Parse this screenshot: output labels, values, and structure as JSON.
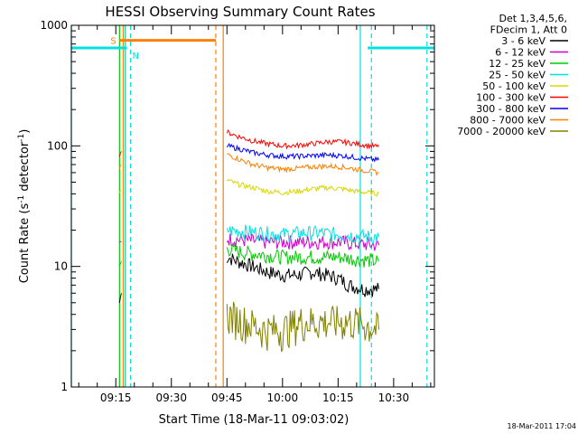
{
  "chart_data": {
    "type": "line",
    "title": "HESSI Observing Summary Count Rates",
    "xlabel": "Start Time (18-Mar-11 09:03:02)",
    "ylabel_pre": "Count Rate (s",
    "ylabel_sup1": "-1",
    "ylabel_mid": " detector",
    "ylabel_sup2": "-1",
    "ylabel_post": ")",
    "y_scale": "log",
    "ylim": [
      1,
      1000
    ],
    "xlim": [
      "09:03",
      "10:41"
    ],
    "x_ticks": [
      {
        "value": "09:15",
        "label": "09:15"
      },
      {
        "value": "09:30",
        "label": "09:30"
      },
      {
        "value": "09:45",
        "label": "09:45"
      },
      {
        "value": "10:00",
        "label": "10:00"
      },
      {
        "value": "10:15",
        "label": "10:15"
      },
      {
        "value": "10:30",
        "label": "10:30"
      }
    ],
    "y_ticks": [
      {
        "value": 1,
        "label": "1"
      },
      {
        "value": 10,
        "label": "10"
      },
      {
        "value": 100,
        "label": "100"
      },
      {
        "value": 1000,
        "label": "1000"
      }
    ],
    "grid": false,
    "legend": {
      "position": "right",
      "header": [
        "Det 1,3,4,5,6,",
        "FDecim 1, Att 0"
      ]
    },
    "series": [
      {
        "name": "3 - 6 keV",
        "color": "#000000",
        "segments": [
          {
            "x": [
              "09:16",
              "09:16:30"
            ],
            "y": [
              5,
              6
            ]
          },
          {
            "x": [
              "09:45",
              "09:48",
              "09:52",
              "09:56",
              "10:00",
              "10:04",
              "10:08",
              "10:12",
              "10:15",
              "10:18",
              "10:22",
              "10:26"
            ],
            "y": [
              12,
              11,
              10,
              9,
              8.5,
              8.5,
              9,
              8.5,
              8,
              7,
              6.5,
              6.5
            ]
          }
        ]
      },
      {
        "name": "6 - 12 keV",
        "color": "#cc00cc",
        "segments": [
          {
            "x": [
              "09:16",
              "09:16:30"
            ],
            "y": [
              15,
              16
            ]
          },
          {
            "x": [
              "09:45",
              "09:50",
              "09:55",
              "10:00",
              "10:05",
              "10:10",
              "10:15",
              "10:20",
              "10:26"
            ],
            "y": [
              17,
              16.5,
              16,
              16,
              16,
              16,
              16,
              15.5,
              15
            ]
          }
        ]
      },
      {
        "name": "12 - 25 keV",
        "color": "#00cc00",
        "segments": [
          {
            "x": [
              "09:16",
              "09:16:30"
            ],
            "y": [
              10,
              11
            ]
          },
          {
            "x": [
              "09:45",
              "09:50",
              "09:55",
              "10:00",
              "10:05",
              "10:10",
              "10:15",
              "10:20",
              "10:26"
            ],
            "y": [
              14,
              13,
              12.5,
              12,
              12,
              12,
              12,
              11.5,
              11
            ]
          }
        ]
      },
      {
        "name": "25 - 50 keV",
        "color": "#00e0e0",
        "segments": [
          {
            "x": [
              "09:45",
              "09:50",
              "09:55",
              "10:00",
              "10:05",
              "10:10",
              "10:15",
              "10:20",
              "10:26"
            ],
            "y": [
              20,
              19.5,
              19,
              18.5,
              19,
              19,
              18.5,
              18,
              17.5
            ]
          }
        ]
      },
      {
        "name": "50 - 100 keV",
        "color": "#d8d800",
        "segments": [
          {
            "x": [
              "09:16",
              "09:16:30"
            ],
            "y": [
              40,
              42
            ]
          },
          {
            "x": [
              "09:45",
              "09:48",
              "09:52",
              "09:56",
              "10:00",
              "10:04",
              "10:08",
              "10:12",
              "10:16",
              "10:20",
              "10:26"
            ],
            "y": [
              52,
              48,
              45,
              42,
              41,
              42,
              44,
              45,
              44,
              42,
              40
            ]
          }
        ]
      },
      {
        "name": "100 - 300 keV",
        "color": "#ff0000",
        "segments": [
          {
            "x": [
              "09:16",
              "09:16:30"
            ],
            "y": [
              85,
              90
            ]
          },
          {
            "x": [
              "09:45",
              "09:48",
              "09:52",
              "09:56",
              "10:00",
              "10:04",
              "10:08",
              "10:12",
              "10:16",
              "10:20",
              "10:26"
            ],
            "y": [
              130,
              120,
              110,
              104,
              100,
              101,
              104,
              108,
              108,
              104,
              98
            ]
          }
        ]
      },
      {
        "name": "300 - 800 keV",
        "color": "#0000ff",
        "segments": [
          {
            "x": [
              "09:45",
              "09:48",
              "09:52",
              "09:56",
              "10:00",
              "10:04",
              "10:08",
              "10:12",
              "10:16",
              "10:20",
              "10:26"
            ],
            "y": [
              100,
              95,
              88,
              84,
              82,
              82,
              83,
              84,
              83,
              80,
              76
            ]
          }
        ]
      },
      {
        "name": "800 - 7000 keV",
        "color": "#ff8000",
        "segments": [
          {
            "x": [
              "09:16",
              "09:16:30"
            ],
            "y": [
              65,
              70
            ]
          },
          {
            "x": [
              "09:45",
              "09:48",
              "09:52",
              "09:56",
              "10:00",
              "10:04",
              "10:08",
              "10:12",
              "10:16",
              "10:20",
              "10:26"
            ],
            "y": [
              85,
              78,
              70,
              66,
              64,
              65,
              67,
              68,
              67,
              64,
              60
            ]
          }
        ]
      },
      {
        "name": "7000 - 20000 keV",
        "color": "#808000",
        "segments": [
          {
            "x": [
              "09:45",
              "09:50",
              "09:55",
              "10:00",
              "10:05",
              "10:10",
              "10:15",
              "10:20",
              "10:26"
            ],
            "y": [
              4,
              3.5,
              3,
              3,
              3.5,
              3.5,
              3.5,
              3.5,
              3
            ]
          }
        ]
      }
    ],
    "annotations": {
      "saa_flag": {
        "label": "S",
        "color": "#ff8000",
        "x": [
          "09:16",
          "09:42"
        ],
        "y": 750
      },
      "night_flags": [
        {
          "label": "N",
          "color": "#00e0e0",
          "x": [
            "09:03",
            "09:18"
          ],
          "y": 650
        },
        {
          "x": [
            "10:23",
            "10:41"
          ],
          "y": 650,
          "color": "#00e0e0"
        }
      ],
      "interval_lines": [
        {
          "x": "09:16",
          "color": "#00cc00",
          "style": "solid"
        },
        {
          "x": "09:17",
          "color": "#ff8000",
          "style": "solid"
        },
        {
          "x": "09:17:30",
          "color": "#00e0e0",
          "style": "solid"
        },
        {
          "x": "09:19",
          "color": "#00e0e0",
          "style": "dashed"
        },
        {
          "x": "09:42",
          "color": "#ff8000",
          "style": "dashed"
        },
        {
          "x": "09:44",
          "color": "#ff8000",
          "style": "solid"
        },
        {
          "x": "10:21",
          "color": "#00e0e0",
          "style": "solid"
        },
        {
          "x": "10:24",
          "color": "#00e0e0",
          "style": "dashed"
        },
        {
          "x": "10:39",
          "color": "#00e0e0",
          "style": "dashed"
        },
        {
          "x": "09:03",
          "color": "#00e0e0",
          "style": "solid"
        }
      ]
    },
    "timestamp": "18-Mar-2011 17:04"
  }
}
